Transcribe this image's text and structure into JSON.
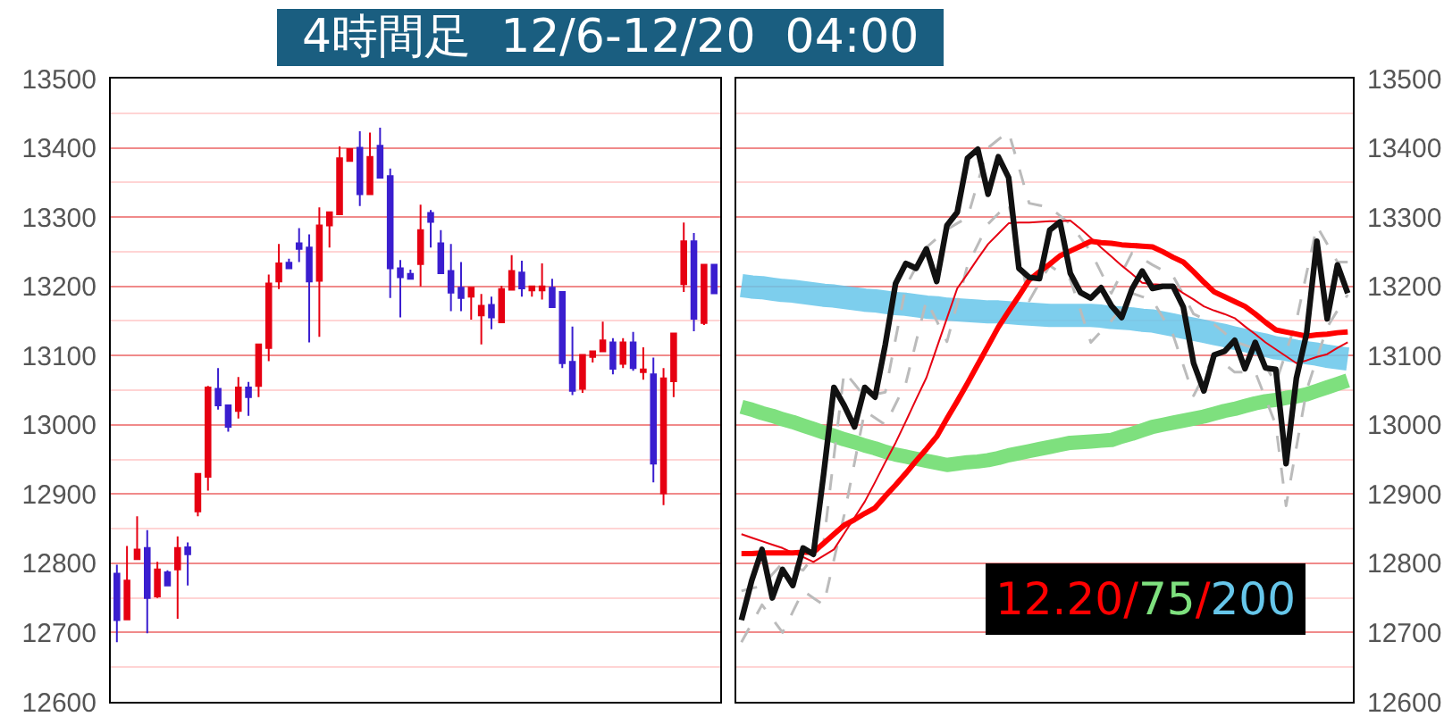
{
  "chart_data": [
    {
      "type": "candlestick",
      "title": "4時間足  12/6-12/20  04:00",
      "categories": [
        null,
        null,
        null,
        null,
        null,
        null,
        null,
        null,
        null,
        null,
        null,
        null,
        null,
        null,
        null,
        null,
        null,
        null,
        null,
        null,
        null,
        null,
        null,
        null,
        null,
        null,
        null,
        null,
        null,
        null,
        null,
        null,
        null,
        null,
        null,
        null,
        null,
        null,
        null,
        null,
        null,
        null,
        null,
        null,
        null,
        null,
        null,
        null,
        null,
        null,
        null,
        null,
        null,
        null,
        null,
        null,
        null,
        null,
        null,
        null
      ],
      "ohlc": [
        [
          12785,
          12798,
          12686,
          12718
        ],
        [
          12719,
          12825,
          12719,
          12775
        ],
        [
          12806,
          12868,
          12806,
          12820
        ],
        [
          12822,
          12848,
          12699,
          12750
        ],
        [
          12752,
          12802,
          12750,
          12791
        ],
        [
          12787,
          12790,
          12768,
          12768
        ],
        [
          12791,
          12839,
          12720,
          12822
        ],
        [
          12823,
          12830,
          12768,
          12813
        ],
        [
          12875,
          12930,
          12868,
          12929
        ],
        [
          12925,
          13056,
          12905,
          13054
        ],
        [
          13052,
          13082,
          13022,
          13028
        ],
        [
          13028,
          13028,
          12990,
          12997
        ],
        [
          13020,
          13069,
          13009,
          13054
        ],
        [
          13054,
          13062,
          13013,
          13040
        ],
        [
          13056,
          13116,
          13040,
          13116
        ],
        [
          13111,
          13217,
          13092,
          13204
        ],
        [
          13207,
          13261,
          13196,
          13233
        ],
        [
          13234,
          13240,
          13226,
          13226
        ],
        [
          13262,
          13284,
          13235,
          13254
        ],
        [
          13256,
          13275,
          13119,
          13207
        ],
        [
          13208,
          13314,
          13127,
          13288
        ],
        [
          13288,
          13307,
          13256,
          13307
        ],
        [
          13304,
          13402,
          13304,
          13385
        ],
        [
          13381,
          13398,
          13381,
          13398
        ],
        [
          13400,
          13424,
          13316,
          13333
        ],
        [
          13333,
          13422,
          13333,
          13387
        ],
        [
          13403,
          13429,
          13357,
          13357
        ],
        [
          13359,
          13370,
          13183,
          13226
        ],
        [
          13226,
          13238,
          13155,
          13213
        ],
        [
          13218,
          13224,
          13211,
          13211
        ],
        [
          13232,
          13318,
          13200,
          13281
        ],
        [
          13306,
          13310,
          13256,
          13293
        ],
        [
          13262,
          13281,
          13219,
          13219
        ],
        [
          13222,
          13261,
          13164,
          13191
        ],
        [
          13198,
          13235,
          13164,
          13183
        ],
        [
          13185,
          13198,
          13152,
          13198
        ],
        [
          13158,
          13189,
          13116,
          13172
        ],
        [
          13173,
          13185,
          13138,
          13155
        ],
        [
          13148,
          13201,
          13148,
          13196
        ],
        [
          13195,
          13245,
          13195,
          13222
        ],
        [
          13220,
          13237,
          13185,
          13197
        ],
        [
          13194,
          13200,
          13185,
          13200
        ],
        [
          13194,
          13233,
          13181,
          13200
        ],
        [
          13198,
          13211,
          13170,
          13170
        ],
        [
          13192,
          13192,
          13082,
          13089
        ],
        [
          13091,
          13142,
          13043,
          13049
        ],
        [
          13052,
          13101,
          13046,
          13101
        ],
        [
          13098,
          13106,
          13090,
          13106
        ],
        [
          13106,
          13149,
          13106,
          13122
        ],
        [
          13119,
          13125,
          13073,
          13081
        ],
        [
          13088,
          13125,
          13082,
          13119
        ],
        [
          13119,
          13134,
          13078,
          13082
        ],
        [
          13076,
          13112,
          13065,
          13080
        ],
        [
          13073,
          13097,
          12917,
          12944
        ],
        [
          12901,
          13082,
          12884,
          13067
        ],
        [
          13063,
          13132,
          13040,
          13132
        ],
        [
          13203,
          13292,
          13192,
          13265
        ],
        [
          13265,
          13277,
          13135,
          13153
        ],
        [
          13147,
          13231,
          13144,
          13231
        ],
        [
          13231,
          13231,
          13190,
          13190
        ]
      ],
      "colors": [
        "#3a1ecf",
        "#e60012",
        "#e60012",
        "#3a1ecf",
        "#e60012",
        "#3a1ecf",
        "#e60012",
        "#3a1ecf",
        "#e60012",
        "#e60012",
        "#3a1ecf",
        "#3a1ecf",
        "#e60012",
        "#3a1ecf",
        "#e60012",
        "#e60012",
        "#e60012",
        "#3a1ecf",
        "#3a1ecf",
        "#3a1ecf",
        "#e60012",
        "#e60012",
        "#e60012",
        "#e60012",
        "#3a1ecf",
        "#e60012",
        "#3a1ecf",
        "#3a1ecf",
        "#3a1ecf",
        "#3a1ecf",
        "#e60012",
        "#3a1ecf",
        "#3a1ecf",
        "#3a1ecf",
        "#3a1ecf",
        "#e60012",
        "#e60012",
        "#3a1ecf",
        "#e60012",
        "#e60012",
        "#3a1ecf",
        "#e60012",
        "#e60012",
        "#3a1ecf",
        "#3a1ecf",
        "#3a1ecf",
        "#e60012",
        "#e60012",
        "#e60012",
        "#3a1ecf",
        "#e60012",
        "#3a1ecf",
        "#e60012",
        "#3a1ecf",
        "#e60012",
        "#e60012",
        "#e60012",
        "#3a1ecf",
        "#e60012",
        "#3a1ecf"
      ],
      "ylim": [
        12600,
        13500
      ],
      "yticks": [
        12600,
        {
          "value": 12650,
          "label": null
        },
        12700,
        {
          "value": 12750,
          "label": null
        },
        12800,
        {
          "value": 12850,
          "label": null
        },
        12900,
        {
          "value": 12950,
          "label": null
        },
        13000,
        {
          "value": 13050,
          "label": null
        },
        13100,
        {
          "value": 13150,
          "label": null
        },
        13200,
        {
          "value": 13250,
          "label": null
        },
        13300,
        {
          "value": 13350,
          "label": null
        },
        13400,
        {
          "value": 13450,
          "label": null
        },
        13500
      ],
      "grid": "y",
      "tick_labels": "y"
    },
    {
      "type": "line",
      "categories": [
        null,
        null,
        null,
        null,
        null,
        null,
        null,
        null,
        null,
        null,
        null,
        null,
        null,
        null,
        null,
        null,
        null,
        null,
        null,
        null,
        null,
        null,
        null,
        null,
        null,
        null,
        null,
        null,
        null,
        null,
        null,
        null,
        null,
        null,
        null,
        null,
        null,
        null,
        null,
        null,
        null,
        null,
        null,
        null,
        null,
        null,
        null,
        null,
        null,
        null,
        null,
        null,
        null,
        null,
        null,
        null,
        null,
        null,
        null,
        null
      ],
      "ylim": [
        12600,
        13500
      ],
      "yticks": [
        12600,
        {
          "value": 12650,
          "label": null
        },
        12700,
        {
          "value": 12750,
          "label": null
        },
        12800,
        {
          "value": 12850,
          "label": null
        },
        12900,
        {
          "value": 12950,
          "label": null
        },
        13000,
        {
          "value": 13050,
          "label": null
        },
        13100,
        {
          "value": 13150,
          "label": null
        },
        13200,
        {
          "value": 13250,
          "label": null
        },
        13300,
        {
          "value": 13350,
          "label": null
        },
        13400,
        {
          "value": 13450,
          "label": null
        },
        13500
      ],
      "grid": "y",
      "tick_labels": "y",
      "annotations": [
        "12.20/75/200"
      ],
      "series": [
        {
          "color": "#66c6ea",
          "values": [
            13201,
            13199,
            13198,
            13196,
            13194,
            13193,
            13191,
            13189,
            13187,
            13186,
            13184,
            13182,
            13180,
            13179,
            13177,
            13175,
            13174,
            13172,
            13170,
            13169,
            13167,
            13166,
            13165,
            13164,
            13163,
            13163,
            13162,
            13161,
            13160,
            13159,
            13158,
            13158,
            13158,
            13158,
            13158,
            13157,
            13155,
            13154,
            13153,
            13151,
            13150,
            13147,
            13144,
            13141,
            13138,
            13135,
            13132,
            13129,
            13125,
            13122,
            13118,
            13115,
            13111,
            13109,
            13106,
            13104,
            13102,
            13099,
            13097,
            13095
          ]
        },
        {
          "color": "#7ee07e",
          "values": [
            13026,
            13022,
            13017,
            13013,
            13008,
            13004,
            12999,
            12994,
            12989,
            12984,
            12979,
            12975,
            12970,
            12966,
            12961,
            12957,
            12954,
            12951,
            12948,
            12945,
            12942,
            12944,
            12946,
            12947,
            12949,
            12952,
            12956,
            12959,
            12962,
            12965,
            12968,
            12971,
            12974,
            12975,
            12976,
            12977,
            12978,
            12983,
            12987,
            12992,
            12997,
            13000,
            13003,
            13006,
            13009,
            13012,
            13016,
            13020,
            13023,
            13027,
            13031,
            13034,
            13036,
            13039,
            13041,
            13044,
            13049,
            13054,
            13059,
            13064
          ]
        },
        {
          "color": "#bbbbbb",
          "line_style": "dashed",
          "values": [
            12760,
            12764,
            12767,
            12784,
            12800,
            12795,
            12790,
            12810,
            12830,
            12954,
            13077,
            13059,
            13040,
            13044,
            13047,
            13124,
            13200,
            13228,
            13256,
            13269,
            13282,
            13291,
            13299,
            13350,
            13400,
            13412,
            13423,
            13372,
            13320,
            13317,
            13314,
            13302,
            13290,
            13270,
            13250,
            13220,
            13190,
            13219,
            13248,
            13240,
            13231,
            13223,
            13215,
            13188,
            13160,
            13153,
            13145,
            13133,
            13120,
            13115,
            13110,
            13085,
            13060,
            13105,
            13150,
            13219,
            13287,
            13261,
            13235,
            13235
          ]
        },
        {
          "color": "#bbbbbb",
          "line_style": "dashed",
          "values": [
            12686,
            12713,
            12740,
            12720,
            12700,
            12730,
            12760,
            12750,
            12740,
            12805,
            12870,
            12945,
            13020,
            13010,
            13000,
            13030,
            13060,
            13120,
            13180,
            13150,
            13120,
            13175,
            13230,
            13260,
            13290,
            13305,
            13320,
            13250,
            13179,
            13205,
            13230,
            13220,
            13210,
            13165,
            13119,
            13135,
            13150,
            13170,
            13190,
            13185,
            13180,
            13155,
            13130,
            13086,
            13042,
            13071,
            13100,
            13088,
            13076,
            13076,
            13076,
            13038,
            13000,
            12883,
            12967,
            13050,
            13096,
            13141,
            13165,
            13188
          ]
        },
        {
          "color": "#e60012",
          "values": [
            12842,
            12837,
            12832,
            12827,
            12822,
            12815,
            12809,
            12802,
            12811,
            12820,
            12843,
            12866,
            12889,
            12917,
            12946,
            12974,
            13005,
            13037,
            13068,
            13111,
            13154,
            13197,
            13218,
            13240,
            13261,
            13276,
            13291,
            13292,
            13292,
            13293,
            13294,
            13294,
            13295,
            13283,
            13270,
            13256,
            13243,
            13230,
            13218,
            13205,
            13203,
            13202,
            13200,
            13190,
            13181,
            13171,
            13165,
            13160,
            13154,
            13142,
            13131,
            13119,
            13109,
            13099,
            13089,
            13093,
            13098,
            13102,
            13111,
            13119
          ]
        },
        {
          "color": "#ff0000",
          "values": [
            12814,
            12814,
            12815,
            12815,
            12815,
            12815,
            12816,
            12816,
            12829,
            12842,
            12855,
            12863,
            12872,
            12880,
            12897,
            12913,
            12930,
            12948,
            12965,
            12983,
            13009,
            13034,
            13060,
            13087,
            13114,
            13141,
            13164,
            13186,
            13209,
            13221,
            13232,
            13244,
            13251,
            13258,
            13265,
            13263,
            13262,
            13260,
            13259,
            13258,
            13257,
            13250,
            13242,
            13235,
            13221,
            13206,
            13192,
            13185,
            13178,
            13171,
            13160,
            13148,
            13137,
            13134,
            13131,
            13128,
            13130,
            13131,
            13133,
            13134
          ]
        },
        {
          "color": "#111111",
          "values": [
            12718,
            12775,
            12820,
            12750,
            12791,
            12768,
            12822,
            12813,
            12929,
            13054,
            13028,
            12997,
            13054,
            13040,
            13116,
            13204,
            13233,
            13226,
            13254,
            13207,
            13288,
            13307,
            13385,
            13398,
            13333,
            13387,
            13357,
            13226,
            13213,
            13211,
            13281,
            13293,
            13219,
            13191,
            13183,
            13198,
            13172,
            13155,
            13196,
            13222,
            13197,
            13200,
            13200,
            13170,
            13089,
            13049,
            13101,
            13106,
            13122,
            13081,
            13119,
            13082,
            13080,
            12944,
            13067,
            13132,
            13265,
            13153,
            13231,
            13190
          ]
        }
      ]
    }
  ]
}
